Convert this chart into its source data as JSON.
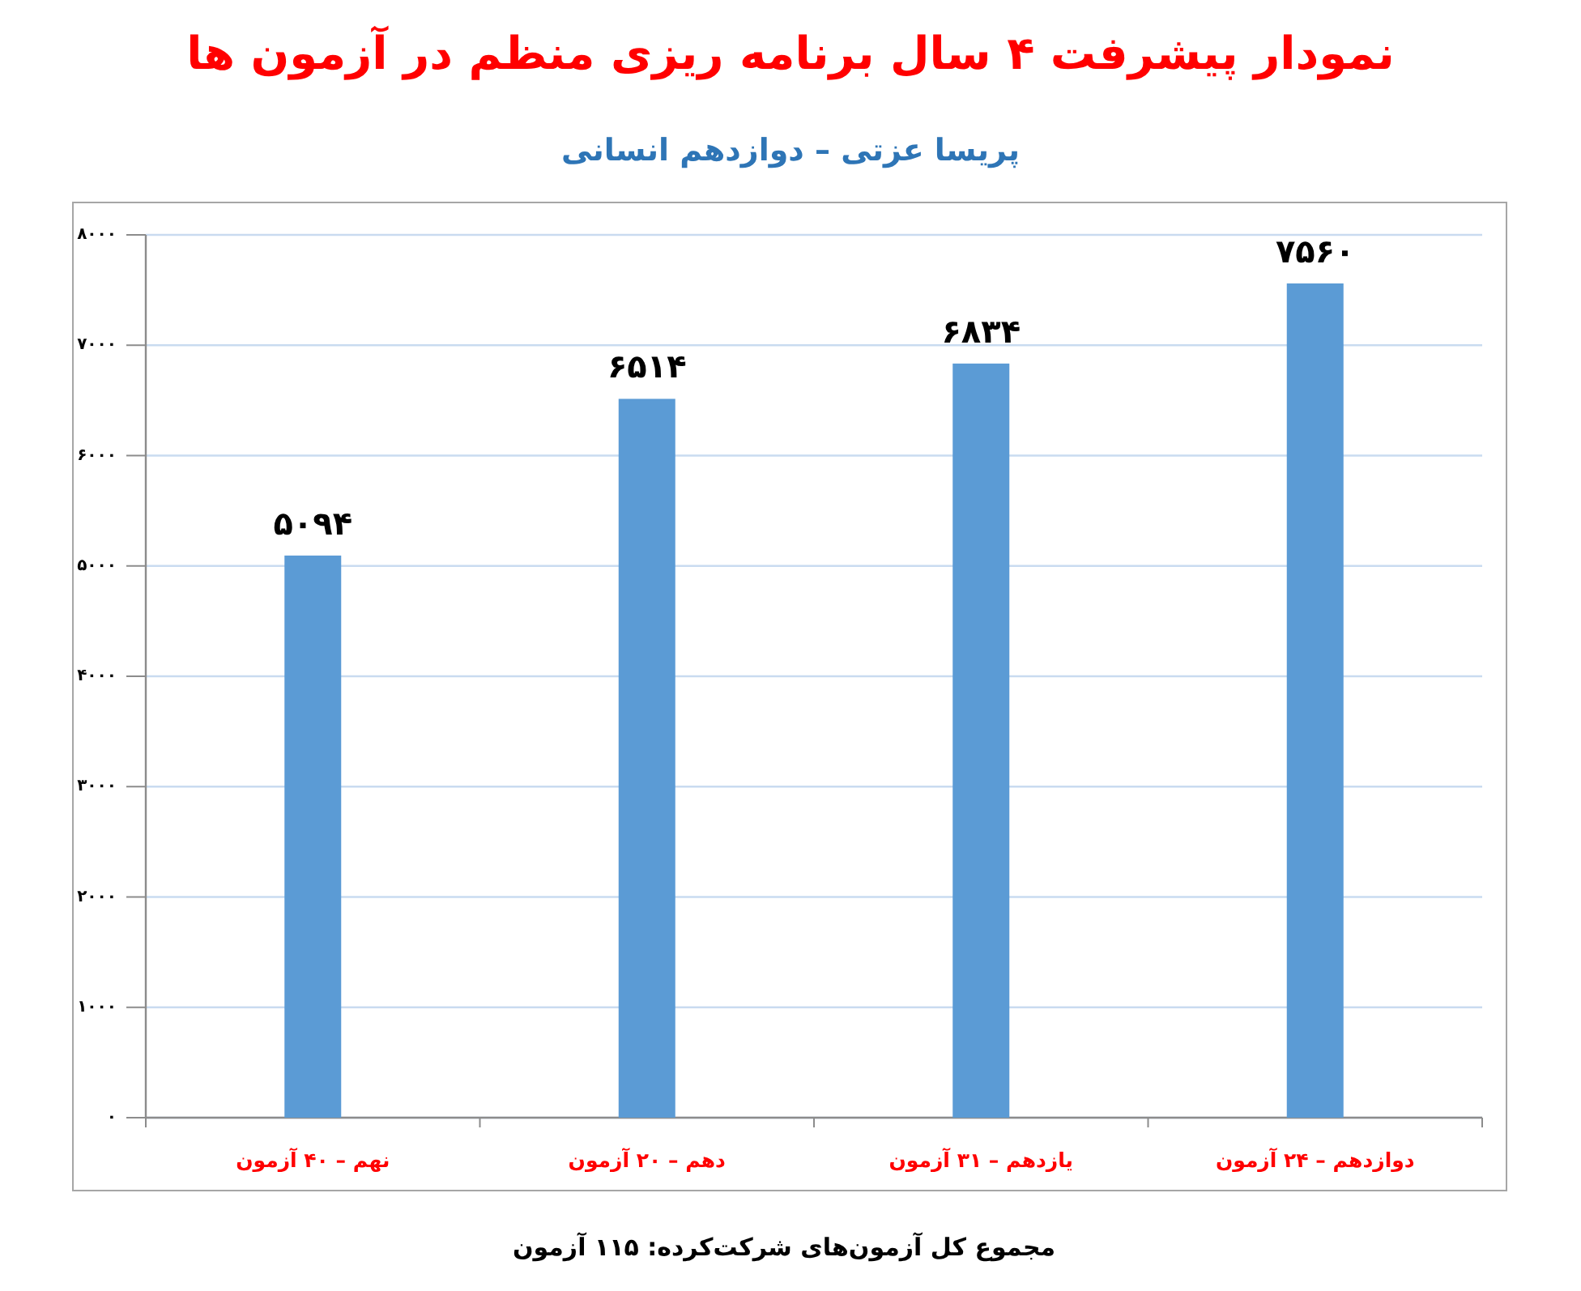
{
  "chart_data": {
    "type": "bar",
    "title": "نمودار پیشرفت ۴ سال برنامه ریزی منظم در آزمون ها",
    "subtitle": "پریسا عزتی – دوازدهم انسانی",
    "categories": [
      "نهم – ۴۰ آزمون",
      "دهم – ۲۰ آزمون",
      "یازدهم – ۳۱ آزمون",
      "دوازدهم – ۲۴ آزمون"
    ],
    "values": [
      5094,
      6514,
      6834,
      7560
    ],
    "value_labels": [
      "۵۰۹۴",
      "۶۵۱۴",
      "۶۸۳۴",
      "۷۵۶۰"
    ],
    "color": "#5b9bd5",
    "ylim": [
      0,
      8000
    ],
    "yticks": [
      {
        "value": 0,
        "label": "۰"
      },
      {
        "value": 1000,
        "label": "۱۰۰۰"
      },
      {
        "value": 2000,
        "label": "۲۰۰۰"
      },
      {
        "value": 3000,
        "label": "۳۰۰۰"
      },
      {
        "value": 4000,
        "label": "۴۰۰۰"
      },
      {
        "value": 5000,
        "label": "۵۰۰۰"
      },
      {
        "value": 6000,
        "label": "۶۰۰۰"
      },
      {
        "value": 7000,
        "label": "۷۰۰۰"
      },
      {
        "value": 8000,
        "label": "۸۰۰۰"
      }
    ],
    "grid": "y",
    "annotations": [
      "مجموع کل آزمون‌های شرکت‌کرده: ۱۱۵ آزمون"
    ]
  }
}
